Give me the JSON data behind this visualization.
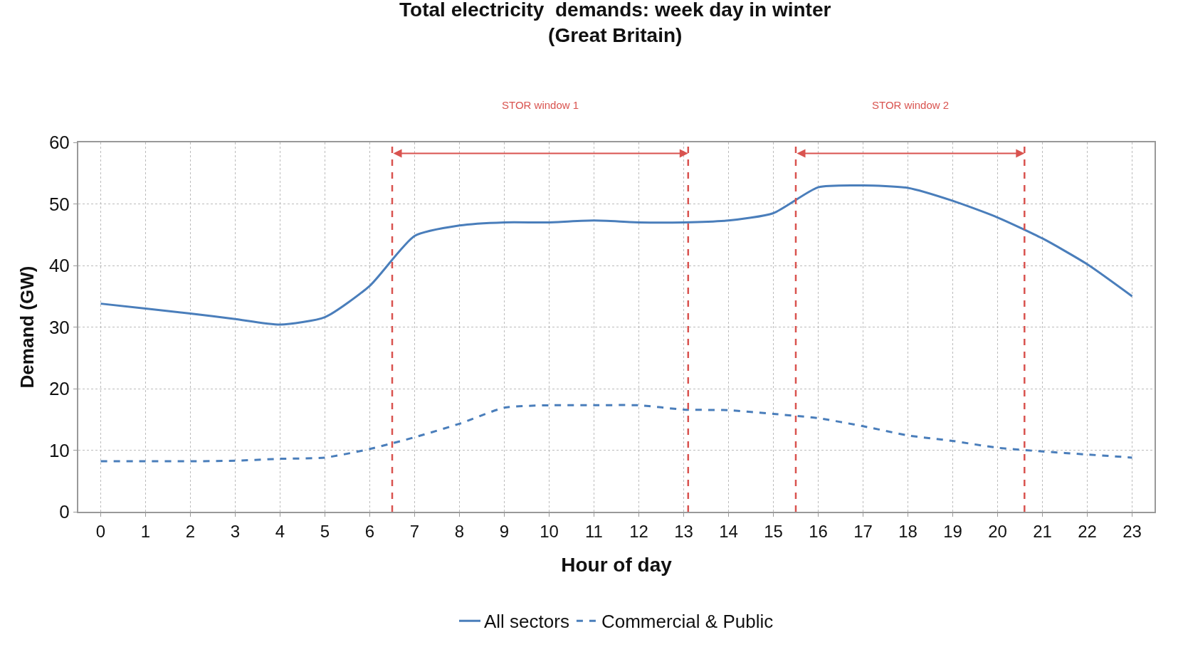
{
  "chart_data": {
    "type": "line",
    "title": "Total electricity  demands: week day in winter\n(Great Britain)",
    "xlabel": "Hour of day",
    "ylabel": "Demand (GW)",
    "x": [
      0,
      1,
      2,
      3,
      4,
      5,
      6,
      7,
      8,
      9,
      10,
      11,
      12,
      13,
      14,
      15,
      16,
      17,
      18,
      19,
      20,
      21,
      22,
      23
    ],
    "series": [
      {
        "name": "All sectors",
        "color": "#4a7ebb",
        "line_style": "solid",
        "values": [
          33.8,
          33,
          32.2,
          31.3,
          30.4,
          31.6,
          36.7,
          44.8,
          46.5,
          47,
          47,
          47.3,
          47,
          47,
          47.3,
          48.5,
          52.7,
          53,
          52.6,
          50.5,
          47.8,
          44.4,
          40.2,
          35
        ]
      },
      {
        "name": "Commercial & Public",
        "color": "#4a7ebb",
        "line_style": "dashed",
        "values": [
          8.2,
          8.2,
          8.2,
          8.3,
          8.6,
          8.8,
          10.2,
          12.1,
          14.3,
          16.9,
          17.3,
          17.3,
          17.3,
          16.6,
          16.5,
          15.9,
          15.2,
          13.9,
          12.4,
          11.5,
          10.4,
          9.8,
          9.3,
          8.8
        ]
      }
    ],
    "xlim": [
      -0.5,
      23.5
    ],
    "xticks": [
      0,
      1,
      2,
      3,
      4,
      5,
      6,
      7,
      8,
      9,
      10,
      11,
      12,
      13,
      14,
      15,
      16,
      17,
      18,
      19,
      20,
      21,
      22,
      23
    ],
    "ylim": [
      0,
      60
    ],
    "yticks": [
      0,
      10,
      20,
      30,
      40,
      50,
      60
    ],
    "ref_lines": [
      {
        "axis": "x",
        "value": 6.5,
        "label": null,
        "color": "#d9534f",
        "line_style": "dashed"
      },
      {
        "axis": "x",
        "value": 13.1,
        "label": null,
        "color": "#d9534f",
        "line_style": "dashed"
      },
      {
        "axis": "x",
        "value": 15.5,
        "label": null,
        "color": "#d9534f",
        "line_style": "dashed"
      },
      {
        "axis": "x",
        "value": 20.6,
        "label": null,
        "color": "#d9534f",
        "line_style": "dashed"
      }
    ],
    "annotations": [
      "STOR window 1",
      "STOR window 2"
    ],
    "grid": true,
    "legend": "bottom",
    "marker": "none"
  }
}
